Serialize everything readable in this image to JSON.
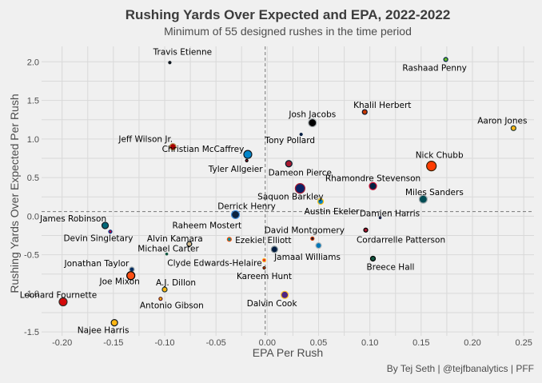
{
  "chart_data": {
    "type": "scatter",
    "title": "Rushing Yards Over Expected and EPA, 2022-2022",
    "subtitle": "Minimum of 55 designed rushes in the time period",
    "caption": "By Tej Seth | @tejfbanalytics | PFF",
    "xlabel": "EPA Per Rush",
    "ylabel": "Rushing Yards Over Expected Per Rush",
    "xlim": [
      -0.22,
      0.26
    ],
    "ylim": [
      -1.55,
      2.2
    ],
    "x_ticks": [
      "-0.20",
      "-0.15",
      "-0.10",
      "-0.05",
      "0.00",
      "0.05",
      "0.10",
      "0.15",
      "0.20",
      "0.25"
    ],
    "y_ticks": [
      "2.0",
      "1.5",
      "1.0",
      "0.5",
      "0.0",
      "-0.5",
      "-1.0",
      "-1.5"
    ],
    "x_tick_values": [
      -0.2,
      -0.15,
      -0.1,
      -0.05,
      0.0,
      0.05,
      0.1,
      0.15,
      0.2,
      0.25
    ],
    "y_tick_values": [
      2.0,
      1.5,
      1.0,
      0.5,
      0.0,
      -0.5,
      -1.0,
      -1.5
    ],
    "reference_lines": {
      "x": -0.002,
      "y": 0.06
    },
    "grid": true,
    "points": [
      {
        "name": "Travis Etienne",
        "x": -0.095,
        "y": 1.99,
        "size": 1.5,
        "fill": "#101820",
        "stroke": "#101820"
      },
      {
        "name": "Rashaad Penny",
        "x": 0.174,
        "y": 2.03,
        "size": 2.5,
        "fill": "#69be28",
        "stroke": "#002244"
      },
      {
        "name": "Khalil Herbert",
        "x": 0.095,
        "y": 1.35,
        "size": 3,
        "fill": "#c83803",
        "stroke": "#0b162a"
      },
      {
        "name": "Josh Jacobs",
        "x": 0.044,
        "y": 1.21,
        "size": 5,
        "fill": "#000000",
        "stroke": "#a5acaf"
      },
      {
        "name": "Aaron Jones",
        "x": 0.24,
        "y": 1.14,
        "size": 3,
        "fill": "#ffb612",
        "stroke": "#203731"
      },
      {
        "name": "Tony Pollard",
        "x": 0.033,
        "y": 1.06,
        "size": 1.5,
        "fill": "#041e42",
        "stroke": "#041e42"
      },
      {
        "name": "Jeff Wilson Jr.",
        "x": -0.092,
        "y": 0.9,
        "size": 4,
        "fill": "#aa0000",
        "stroke": "#b3995d"
      },
      {
        "name": "Christian McCaffrey",
        "x": -0.019,
        "y": 0.8,
        "size": 5,
        "fill": "#0085ca",
        "stroke": "#101820"
      },
      {
        "name": "Tyler Allgeier",
        "x": -0.02,
        "y": 0.72,
        "size": 1.5,
        "fill": "#a71930",
        "stroke": "#000000"
      },
      {
        "name": "Dameon Pierce",
        "x": 0.021,
        "y": 0.68,
        "size": 4,
        "fill": "#a71930",
        "stroke": "#03202f"
      },
      {
        "name": "Nick Chubb",
        "x": 0.16,
        "y": 0.65,
        "size": 6,
        "fill": "#ff3c00",
        "stroke": "#311d00"
      },
      {
        "name": "Rhamondre Stevenson",
        "x": 0.103,
        "y": 0.39,
        "size": 4.5,
        "fill": "#002244",
        "stroke": "#c60c30"
      },
      {
        "name": "Saquon Barkley",
        "x": 0.032,
        "y": 0.36,
        "size": 6,
        "fill": "#0b2265",
        "stroke": "#a71930"
      },
      {
        "name": "Miles Sanders",
        "x": 0.152,
        "y": 0.22,
        "size": 5,
        "fill": "#004c54",
        "stroke": "#a5acaf"
      },
      {
        "name": "Austin Ekeler",
        "x": 0.052,
        "y": 0.19,
        "size": 3.5,
        "fill": "#0080c6",
        "stroke": "#ffc20e"
      },
      {
        "name": "Derrick Henry",
        "x": -0.031,
        "y": 0.02,
        "size": 5,
        "fill": "#0c2340",
        "stroke": "#4b92db"
      },
      {
        "name": "Damien Harris",
        "x": 0.11,
        "y": -0.02,
        "size": 1.2,
        "fill": "#c60c30",
        "stroke": "#002244"
      },
      {
        "name": "James Robinson",
        "x": -0.158,
        "y": -0.12,
        "size": 4,
        "fill": "#006778",
        "stroke": "#101820"
      },
      {
        "name": "Devin Singletary",
        "x": -0.153,
        "y": -0.2,
        "size": 2,
        "fill": "#c60c30",
        "stroke": "#00338d"
      },
      {
        "name": "Cordarrelle Patterson",
        "x": 0.096,
        "y": -0.18,
        "size": 2.5,
        "fill": "#a71930",
        "stroke": "#000000"
      },
      {
        "name": "Alvin Kamara",
        "x": -0.076,
        "y": -0.36,
        "size": 3,
        "fill": "#d3bc8d",
        "stroke": "#101820"
      },
      {
        "name": "Raheem Mostert",
        "x": -0.037,
        "y": -0.3,
        "size": 2.5,
        "fill": "#008e97",
        "stroke": "#fc4c02"
      },
      {
        "name": "David Montgomery",
        "x": 0.044,
        "y": -0.29,
        "size": 2,
        "fill": "#0b162a",
        "stroke": "#c83803"
      },
      {
        "name": "Michael Carter",
        "x": -0.098,
        "y": -0.49,
        "size": 1.2,
        "fill": "#125740",
        "stroke": "#125740"
      },
      {
        "name": "Ezekiel Elliott",
        "x": 0.007,
        "y": -0.43,
        "size": 4,
        "fill": "#041e42",
        "stroke": "#869397"
      },
      {
        "name": "Jamaal Williams",
        "x": 0.05,
        "y": -0.38,
        "size": 3.5,
        "fill": "#0076b6",
        "stroke": "#b0b7bc"
      },
      {
        "name": "Jonathan Taylor",
        "x": -0.132,
        "y": -0.69,
        "size": 3,
        "fill": "#002c5f",
        "stroke": "#a2aaad"
      },
      {
        "name": "Breece Hall",
        "x": 0.103,
        "y": -0.55,
        "size": 3,
        "fill": "#125740",
        "stroke": "#000000"
      },
      {
        "name": "Clyde Edwards-Helaire",
        "x": -0.003,
        "y": -0.57,
        "size": 2,
        "fill": "#e31837",
        "stroke": "#ffb81c"
      },
      {
        "name": "Kareem Hunt",
        "x": -0.003,
        "y": -0.67,
        "size": 1.5,
        "fill": "#ff3c00",
        "stroke": "#311d00"
      },
      {
        "name": "Joe Mixon",
        "x": -0.133,
        "y": -0.77,
        "size": 5,
        "fill": "#fb4f14",
        "stroke": "#000000"
      },
      {
        "name": "A.J. Dillon",
        "x": -0.1,
        "y": -0.95,
        "size": 3,
        "fill": "#ffb612",
        "stroke": "#203731"
      },
      {
        "name": "Dalvin Cook",
        "x": 0.017,
        "y": -1.02,
        "size": 4.5,
        "fill": "#4f2683",
        "stroke": "#ffc62f"
      },
      {
        "name": "Antonio Gibson",
        "x": -0.104,
        "y": -1.07,
        "size": 2,
        "fill": "#ffb612",
        "stroke": "#5a1414"
      },
      {
        "name": "Leonard Fournette",
        "x": -0.199,
        "y": -1.11,
        "size": 5,
        "fill": "#d50a0a",
        "stroke": "#34302b"
      },
      {
        "name": "Najee Harris",
        "x": -0.149,
        "y": -1.38,
        "size": 4,
        "fill": "#ffb612",
        "stroke": "#101820"
      }
    ]
  }
}
